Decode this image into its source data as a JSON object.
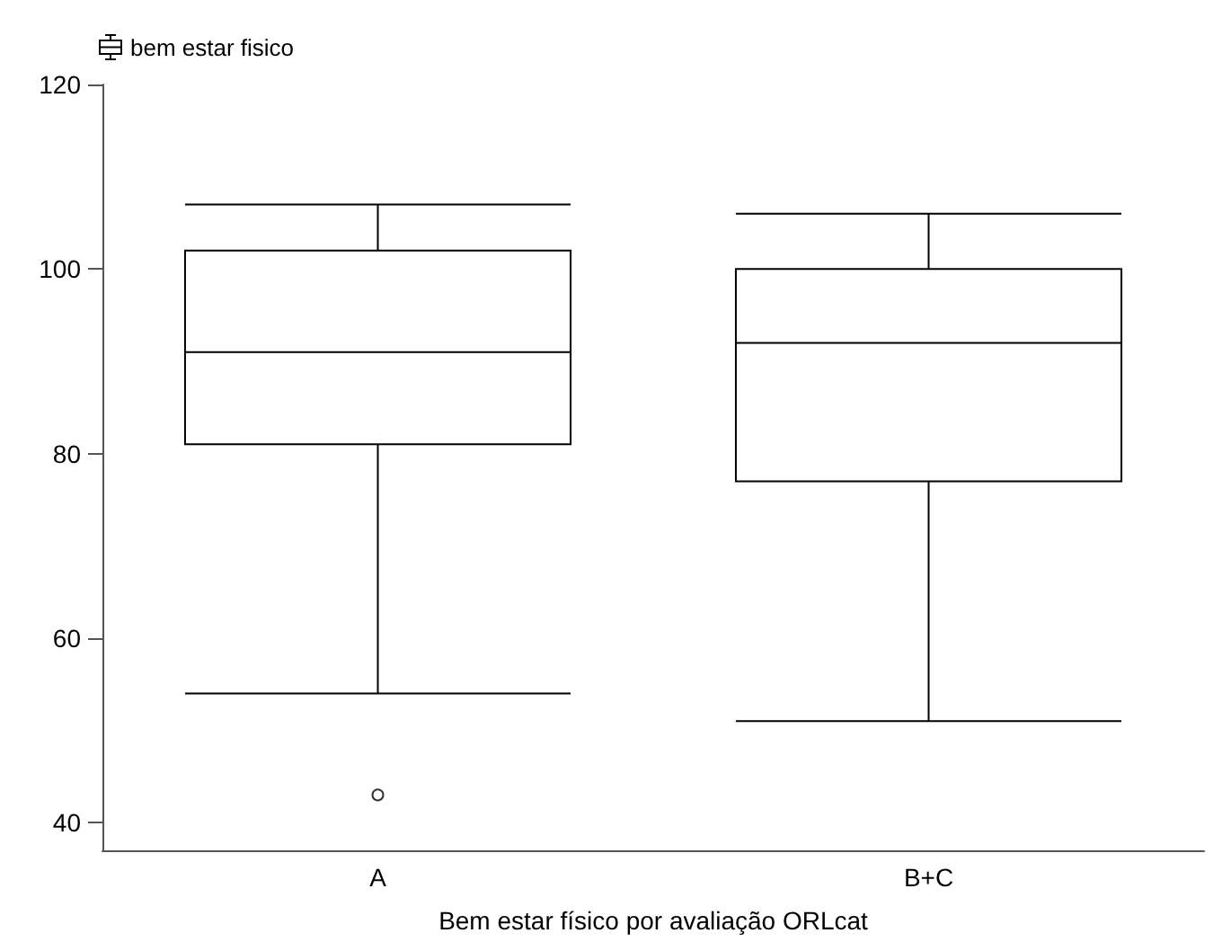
{
  "chart_data": {
    "type": "box",
    "xlabel": "Bem estar físico por avaliação ORLcat",
    "categories": [
      "A",
      "B+C"
    ],
    "series": [
      {
        "name": "bem estar fisico",
        "color": "#000000",
        "boxes": [
          {
            "low": 54,
            "q1": 81,
            "median": 91,
            "q3": 102,
            "high": 107,
            "outliers": [
              43
            ]
          },
          {
            "low": 51,
            "q1": 77,
            "median": 92,
            "q3": 100,
            "high": 106
          }
        ]
      }
    ],
    "ylim": [
      37,
      120
    ],
    "yticks": [
      40,
      60,
      80,
      100,
      120
    ],
    "legend": "top left"
  }
}
